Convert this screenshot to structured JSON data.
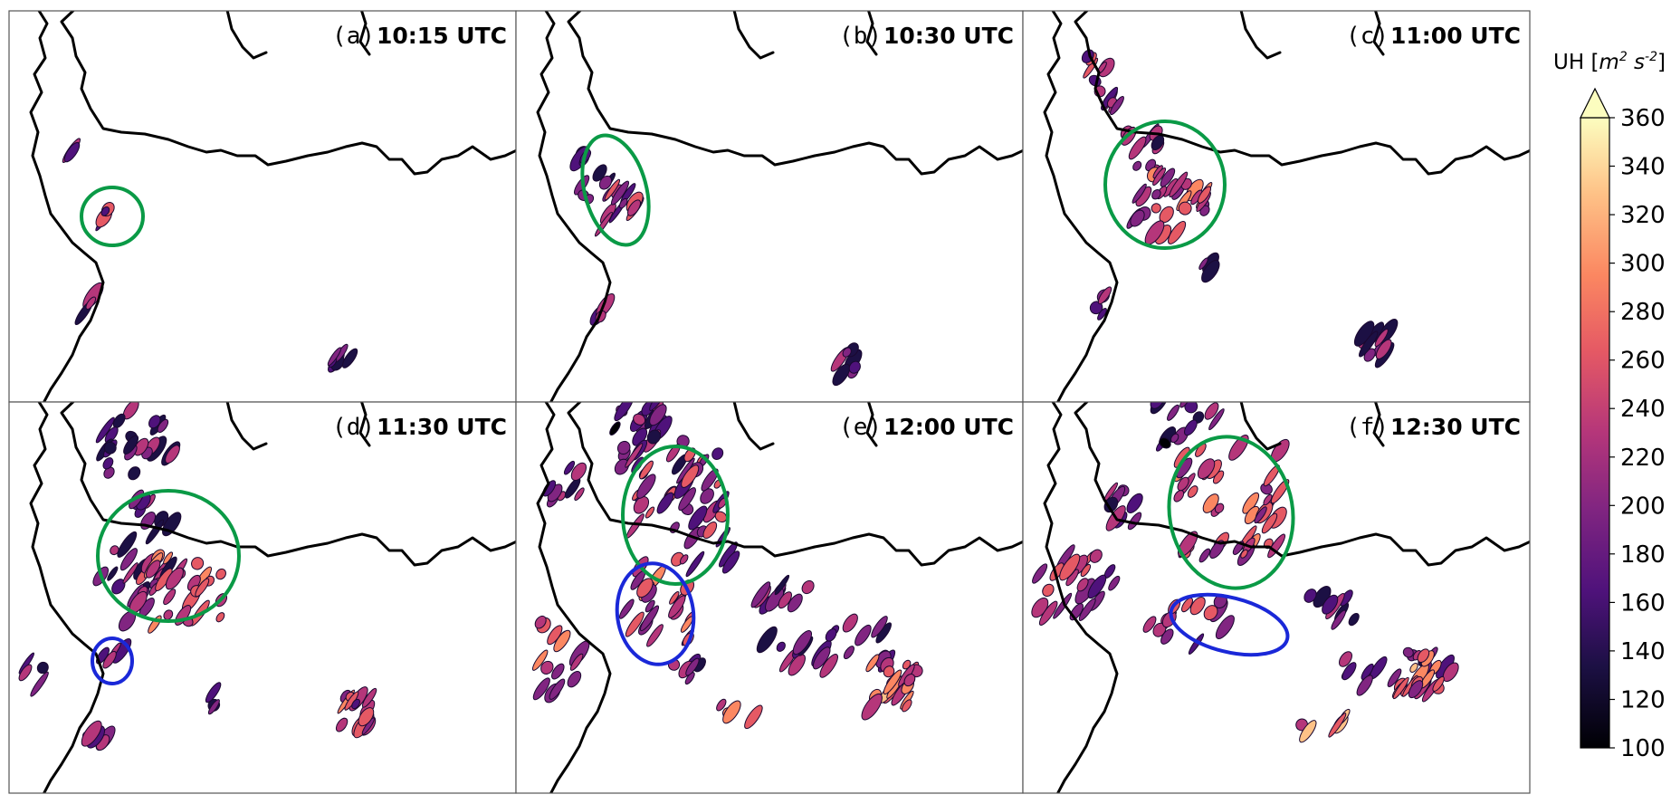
{
  "colorbar": {
    "label_prefix": "UH [",
    "label_m": "m",
    "label_exp1": "2",
    "label_s": " s",
    "label_exp2": "-2",
    "label_suffix": "]",
    "ticks": [
      "360",
      "340",
      "320",
      "300",
      "280",
      "260",
      "240",
      "220",
      "200",
      "180",
      "160",
      "140",
      "120",
      "100"
    ],
    "min": 100,
    "max": 360,
    "extend": "max",
    "colormap": "magma"
  },
  "panels": [
    {
      "letter": "(a)",
      "time": "10:15 UTC",
      "circles": [
        {
          "color": "green"
        }
      ]
    },
    {
      "letter": "(b)",
      "time": "10:30 UTC",
      "circles": [
        {
          "color": "green"
        }
      ]
    },
    {
      "letter": "(c)",
      "time": "11:00 UTC",
      "circles": [
        {
          "color": "green"
        }
      ]
    },
    {
      "letter": "(d)",
      "time": "11:30 UTC",
      "circles": [
        {
          "color": "green"
        },
        {
          "color": "blue"
        }
      ]
    },
    {
      "letter": "(e)",
      "time": "12:00 UTC",
      "circles": [
        {
          "color": "green"
        },
        {
          "color": "blue"
        }
      ]
    },
    {
      "letter": "(f)",
      "time": "12:30 UTC",
      "circles": [
        {
          "color": "green"
        },
        {
          "color": "blue"
        }
      ]
    }
  ],
  "colors": {
    "green_circle": "#0a9a46",
    "blue_circle": "#1a28d8",
    "coastline": "#000000"
  }
}
